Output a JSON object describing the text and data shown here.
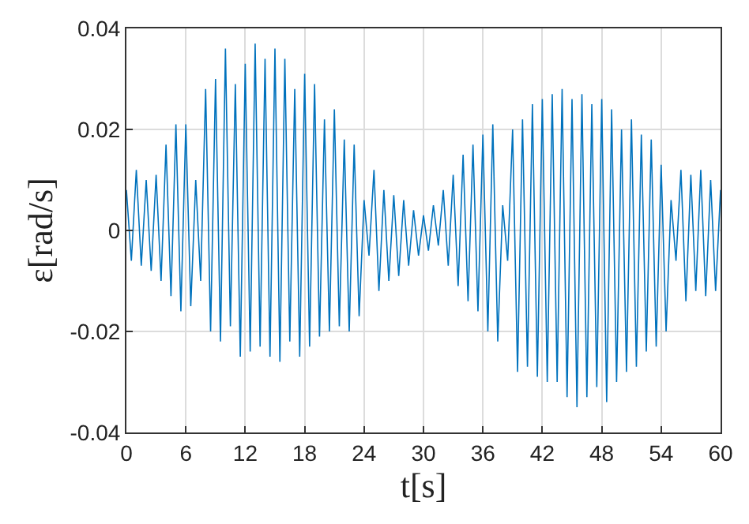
{
  "chart_data": {
    "type": "line",
    "xlabel": "t[s]",
    "ylabel": "ε[rad/s]",
    "xlim": [
      0,
      60
    ],
    "xticks": [
      0,
      6,
      12,
      18,
      24,
      30,
      36,
      42,
      48,
      54,
      60
    ],
    "ylim": [
      -0.04,
      0.04
    ],
    "yticks": [
      -0.04,
      -0.02,
      0,
      0.02,
      0.04
    ],
    "grid": true,
    "marker": "none",
    "line_style": "solid",
    "series": [
      {
        "color": "#0072bd",
        "x": [
          0,
          0.5,
          1,
          1.5,
          2,
          2.5,
          3,
          3.5,
          4,
          4.5,
          5,
          5.5,
          6,
          6.5,
          7,
          7.5,
          8,
          8.5,
          9,
          9.5,
          10,
          10.5,
          11,
          11.5,
          12,
          12.5,
          13,
          13.5,
          14,
          14.5,
          15,
          15.5,
          16,
          16.5,
          17,
          17.5,
          18,
          18.5,
          19,
          19.5,
          20,
          20.5,
          21,
          21.5,
          22,
          22.5,
          23,
          23.5,
          24,
          24.5,
          25,
          25.5,
          26,
          26.5,
          27,
          27.5,
          28,
          28.5,
          29,
          29.5,
          30,
          30.5,
          31,
          31.5,
          32,
          32.5,
          33,
          33.5,
          34,
          34.5,
          35,
          35.5,
          36,
          36.5,
          37,
          37.5,
          38,
          38.5,
          39,
          39.5,
          40,
          40.5,
          41,
          41.5,
          42,
          42.5,
          43,
          43.5,
          44,
          44.5,
          45,
          45.5,
          46,
          46.5,
          47,
          47.5,
          48,
          48.5,
          49,
          49.5,
          50,
          50.5,
          51,
          51.5,
          52,
          52.5,
          53,
          53.5,
          54,
          54.5,
          55,
          55.5,
          56,
          56.5,
          57,
          57.5,
          58,
          58.5,
          59,
          59.5,
          60
        ],
        "values": [
          0.008,
          -0.006,
          0.012,
          -0.007,
          0.01,
          -0.008,
          0.011,
          -0.01,
          0.017,
          -0.013,
          0.021,
          -0.016,
          0.021,
          -0.015,
          0.01,
          -0.01,
          0.028,
          -0.02,
          0.03,
          -0.022,
          0.036,
          -0.019,
          0.029,
          -0.025,
          0.033,
          -0.024,
          0.037,
          -0.023,
          0.034,
          -0.025,
          0.036,
          -0.026,
          0.034,
          -0.022,
          0.028,
          -0.025,
          0.031,
          -0.023,
          0.029,
          -0.021,
          0.022,
          -0.02,
          0.024,
          -0.019,
          0.018,
          -0.02,
          0.017,
          -0.017,
          0.006,
          -0.005,
          0.012,
          -0.012,
          0.008,
          -0.01,
          0.007,
          -0.009,
          0.006,
          -0.007,
          0.004,
          -0.005,
          0.003,
          -0.004,
          0.005,
          -0.003,
          0.008,
          -0.007,
          0.011,
          -0.011,
          0.015,
          -0.014,
          0.017,
          -0.016,
          0.019,
          -0.02,
          0.021,
          -0.022,
          0.005,
          -0.006,
          0.02,
          -0.028,
          0.022,
          -0.027,
          0.025,
          -0.029,
          0.026,
          -0.03,
          0.027,
          -0.03,
          0.028,
          -0.033,
          0.026,
          -0.035,
          0.027,
          -0.033,
          0.025,
          -0.031,
          0.026,
          -0.034,
          0.024,
          -0.03,
          0.02,
          -0.028,
          0.022,
          -0.027,
          0.019,
          -0.024,
          0.018,
          -0.023,
          0.013,
          -0.02,
          0.006,
          -0.006,
          0.012,
          -0.014,
          0.011,
          -0.012,
          0.012,
          -0.013,
          0.01,
          -0.012,
          0.008
        ]
      }
    ]
  }
}
